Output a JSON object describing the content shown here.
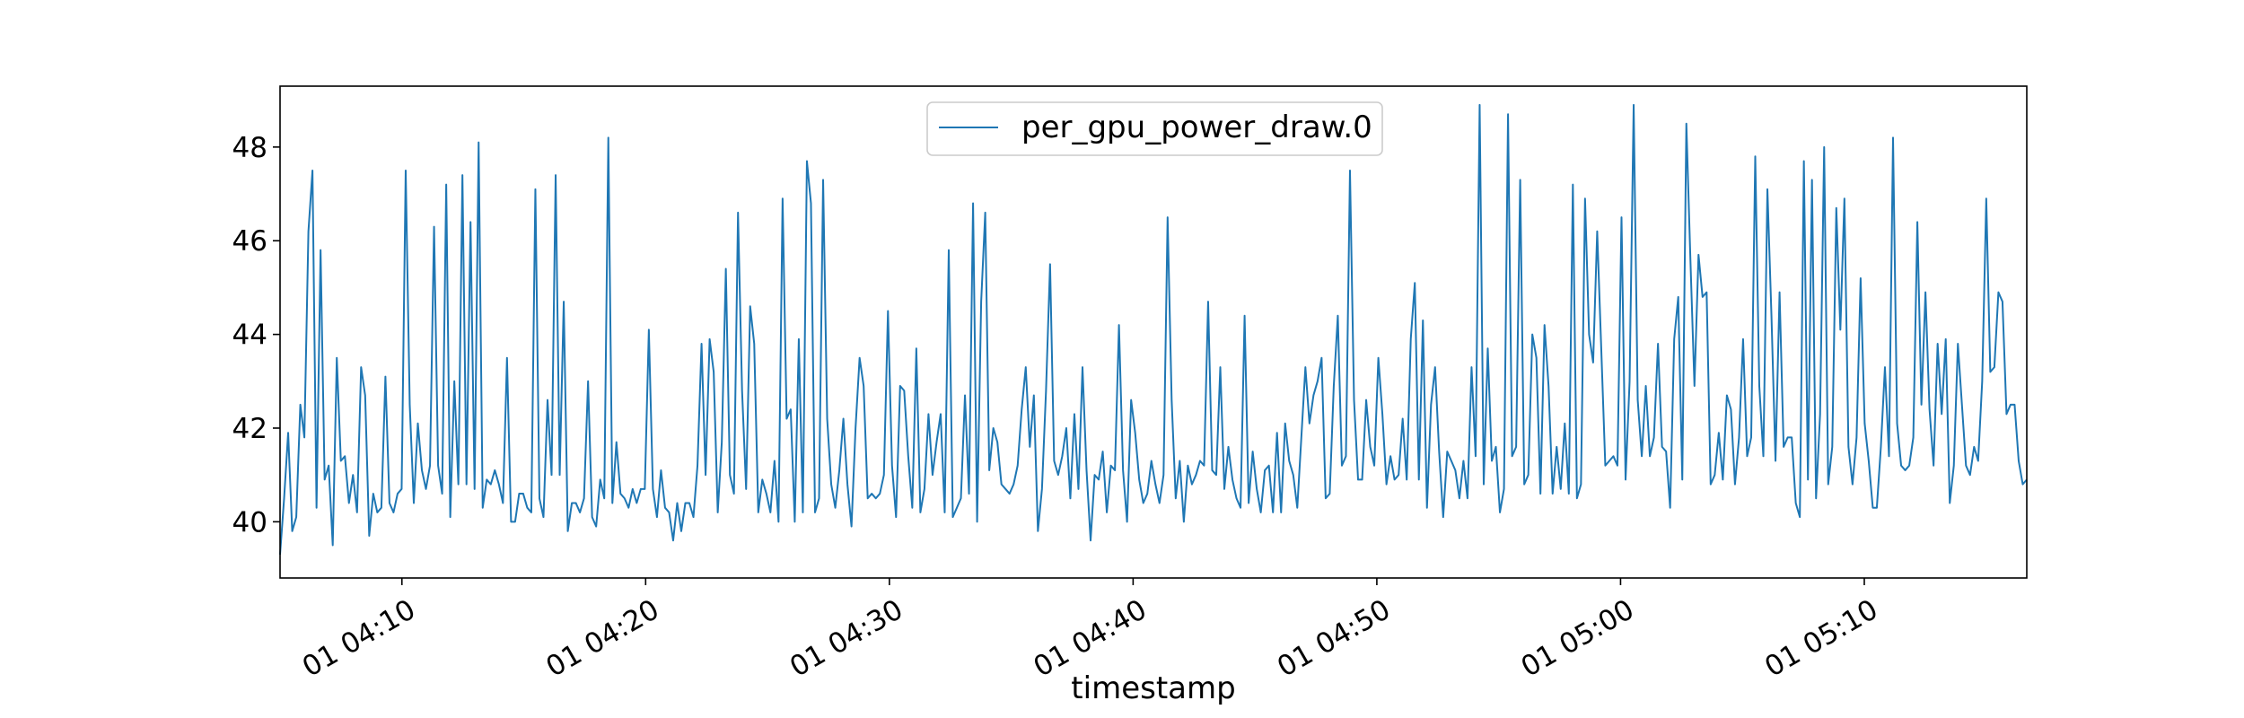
{
  "chart_data": {
    "type": "line",
    "xlabel": "timestamp",
    "ylabel": "",
    "ylim": [
      38.8,
      49.3
    ],
    "xlim": [
      "01 04:05:00",
      "01 05:16:40"
    ],
    "grid": false,
    "legend_position": "top-center",
    "y_ticks": [
      "40",
      "42",
      "44",
      "46",
      "48"
    ],
    "x_ticks": [
      "01 04:10",
      "01 04:20",
      "01 04:30",
      "01 04:40",
      "01 04:50",
      "01 05:00",
      "01 05:10"
    ],
    "series": [
      {
        "name": "per_gpu_power_draw.0",
        "color": "#1f77b4",
        "x_start": "01 04:05:00",
        "x_end": "01 05:16:40",
        "values": [
          39.3,
          40.5,
          41.9,
          39.8,
          40.1,
          42.5,
          41.8,
          46.2,
          47.5,
          40.3,
          45.8,
          40.9,
          41.2,
          39.5,
          43.5,
          41.3,
          41.4,
          40.4,
          41.0,
          40.2,
          43.3,
          42.7,
          39.7,
          40.6,
          40.2,
          40.3,
          43.1,
          40.4,
          40.2,
          40.6,
          40.7,
          47.5,
          42.5,
          40.4,
          42.1,
          41.1,
          40.7,
          41.2,
          46.3,
          41.2,
          40.6,
          47.2,
          40.1,
          43.0,
          40.8,
          47.4,
          40.8,
          46.4,
          40.7,
          48.1,
          40.3,
          40.9,
          40.8,
          41.1,
          40.8,
          40.4,
          43.5,
          40.0,
          40.0,
          40.6,
          40.6,
          40.3,
          40.2,
          47.1,
          40.5,
          40.1,
          42.6,
          41.0,
          47.4,
          41.0,
          44.7,
          39.8,
          40.4,
          40.4,
          40.2,
          40.5,
          43.0,
          40.1,
          39.9,
          40.9,
          40.5,
          48.2,
          40.4,
          41.7,
          40.6,
          40.5,
          40.3,
          40.7,
          40.4,
          40.7,
          40.7,
          44.1,
          40.7,
          40.1,
          41.1,
          40.3,
          40.2,
          39.6,
          40.4,
          39.8,
          40.4,
          40.4,
          40.1,
          41.2,
          43.8,
          41.0,
          43.9,
          43.2,
          40.2,
          41.7,
          45.4,
          41.0,
          40.6,
          46.6,
          42.8,
          40.7,
          44.6,
          43.8,
          40.2,
          40.9,
          40.6,
          40.2,
          41.3,
          40.0,
          46.9,
          42.2,
          42.4,
          40.0,
          43.9,
          40.2,
          47.7,
          46.8,
          40.2,
          40.5,
          47.3,
          42.2,
          40.8,
          40.3,
          41.1,
          42.2,
          40.8,
          39.9,
          42.0,
          43.5,
          42.9,
          40.5,
          40.6,
          40.5,
          40.6,
          41.0,
          44.5,
          41.2,
          40.1,
          42.9,
          42.8,
          41.4,
          40.3,
          43.7,
          40.2,
          40.7,
          42.3,
          41.0,
          41.7,
          42.3,
          40.2,
          45.8,
          40.1,
          40.3,
          40.5,
          42.7,
          40.6,
          46.8,
          40.0,
          44.7,
          46.6,
          41.1,
          42.0,
          41.7,
          40.8,
          40.7,
          40.6,
          40.8,
          41.2,
          42.4,
          43.3,
          41.6,
          42.7,
          39.8,
          40.7,
          42.8,
          45.5,
          41.3,
          41.0,
          41.4,
          42.0,
          40.5,
          42.3,
          40.7,
          43.3,
          41.1,
          39.6,
          41.0,
          40.9,
          41.5,
          40.2,
          41.2,
          41.1,
          44.2,
          41.1,
          40.0,
          42.6,
          41.9,
          40.9,
          40.4,
          40.6,
          41.3,
          40.8,
          40.4,
          41.0,
          46.5,
          42.6,
          40.5,
          41.3,
          40.0,
          41.2,
          40.8,
          41.0,
          41.3,
          41.2,
          44.7,
          41.1,
          41.0,
          43.3,
          40.7,
          41.6,
          40.9,
          40.5,
          40.3,
          44.4,
          40.4,
          41.5,
          40.7,
          40.2,
          41.1,
          41.2,
          40.2,
          41.9,
          40.2,
          42.1,
          41.3,
          41.0,
          40.3,
          41.8,
          43.3,
          42.1,
          42.7,
          43.0,
          43.5,
          40.5,
          40.6,
          42.9,
          44.4,
          41.2,
          41.4,
          47.5,
          42.6,
          40.9,
          40.9,
          42.6,
          41.6,
          41.2,
          43.5,
          42.3,
          40.8,
          41.4,
          40.9,
          41.0,
          42.2,
          40.9,
          43.9,
          45.1,
          40.9,
          44.3,
          40.3,
          42.5,
          43.3,
          41.5,
          40.1,
          41.5,
          41.3,
          41.1,
          40.5,
          41.3,
          40.5,
          43.3,
          41.4,
          48.9,
          40.8,
          43.7,
          41.3,
          41.6,
          40.2,
          40.7,
          48.7,
          41.4,
          41.6,
          47.3,
          40.8,
          41.0,
          44.0,
          43.5,
          40.6,
          44.2,
          42.9,
          40.6,
          41.6,
          40.7,
          42.1,
          40.6,
          47.2,
          40.5,
          40.8,
          46.9,
          44.0,
          43.4,
          46.2,
          43.7,
          41.2,
          41.3,
          41.4,
          41.2,
          46.5,
          40.9,
          43.0,
          48.9,
          42.6,
          41.4,
          42.9,
          41.4,
          41.8,
          43.8,
          41.6,
          41.5,
          40.3,
          43.9,
          44.8,
          40.9,
          48.5,
          45.6,
          42.9,
          45.7,
          44.8,
          44.9,
          40.8,
          41.0,
          41.9,
          40.9,
          42.7,
          42.4,
          40.8,
          41.8,
          43.9,
          41.4,
          41.8,
          47.8,
          42.9,
          41.4,
          47.1,
          44.4,
          41.3,
          44.9,
          41.6,
          41.8,
          41.8,
          40.4,
          40.1,
          47.7,
          40.9,
          47.3,
          40.5,
          42.3,
          48.0,
          40.8,
          41.6,
          46.7,
          44.1,
          46.9,
          41.6,
          40.8,
          41.8,
          45.2,
          42.1,
          41.3,
          40.3,
          40.3,
          41.6,
          43.3,
          41.4,
          48.2,
          42.1,
          41.2,
          41.1,
          41.2,
          41.8,
          46.4,
          42.5,
          44.9,
          42.4,
          41.2,
          43.8,
          42.3,
          43.9,
          40.4,
          41.2,
          43.8,
          42.5,
          41.2,
          41.0,
          41.6,
          41.3,
          43.0,
          46.9,
          43.2,
          43.3,
          44.9,
          44.7,
          42.3,
          42.5,
          42.5,
          41.3,
          40.8,
          40.9
        ]
      }
    ]
  }
}
